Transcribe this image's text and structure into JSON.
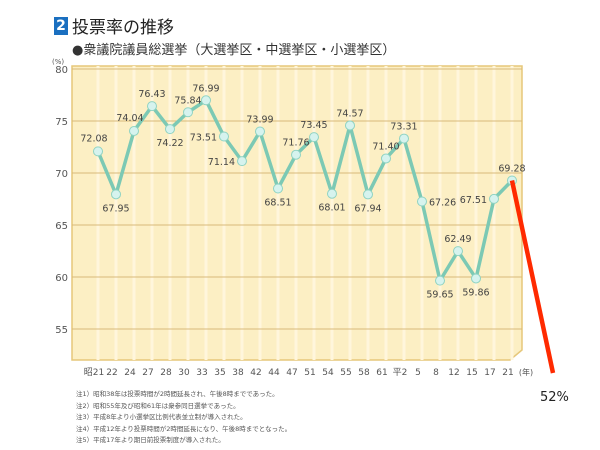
{
  "header": {
    "number": "2",
    "title": "投票率の推移",
    "subtitle": "●衆議院議員総選挙（大選挙区・中選挙区・小選挙区）"
  },
  "chart_data": {
    "type": "line",
    "ylabel": "(%)",
    "xlabel": "(年)",
    "ylim": [
      50,
      80
    ],
    "yticks": [
      80,
      75,
      70,
      65,
      60,
      55
    ],
    "grid": true,
    "categories": [
      "昭21",
      "22",
      "24",
      "27",
      "28",
      "30",
      "33",
      "35",
      "38",
      "42",
      "44",
      "47",
      "51",
      "54",
      "55",
      "58",
      "61",
      "平2",
      "5",
      "8",
      "12",
      "15",
      "17",
      "21"
    ],
    "values": [
      72.08,
      67.95,
      74.04,
      76.43,
      74.22,
      75.84,
      76.99,
      73.51,
      71.14,
      73.99,
      68.51,
      71.76,
      73.45,
      68.01,
      74.57,
      67.94,
      71.4,
      73.31,
      67.26,
      59.65,
      62.49,
      59.86,
      67.51,
      69.28
    ],
    "line_color": "#7cc9b4",
    "background_color": "#fcefc4",
    "annotation": {
      "label": "52%",
      "value": 52,
      "color": "#ff2a00"
    }
  },
  "notes": [
    "注1）昭和38年は投票時間が2時間延長され、午後8時までであった。",
    "注2）昭和55年及び昭和61年は衆参同日選挙であった。",
    "注3）平成8年より小選挙区比例代表並立制が導入された。",
    "注4）平成12年より投票時間が2時間延長になり、午後8時までとなった。",
    "注5）平成17年より期日前投票制度が導入された。"
  ]
}
